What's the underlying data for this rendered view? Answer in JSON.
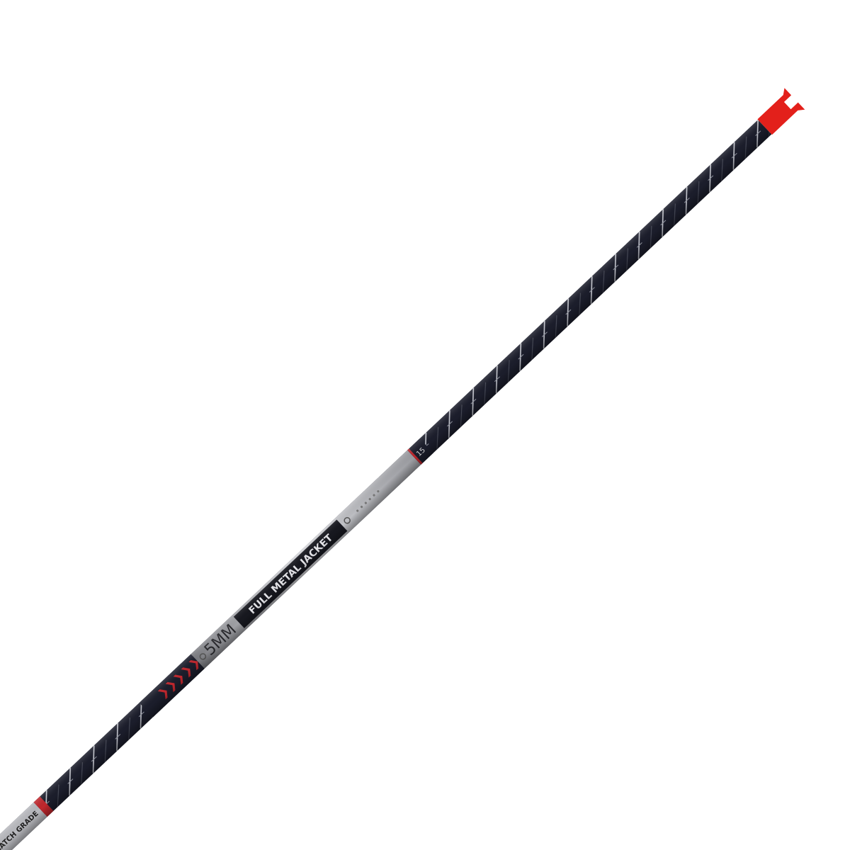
{
  "shaft": {
    "size": "5MM",
    "name": "FULL METAL JACKET",
    "grade": "MATCH GRADE",
    "spine": "15"
  }
}
